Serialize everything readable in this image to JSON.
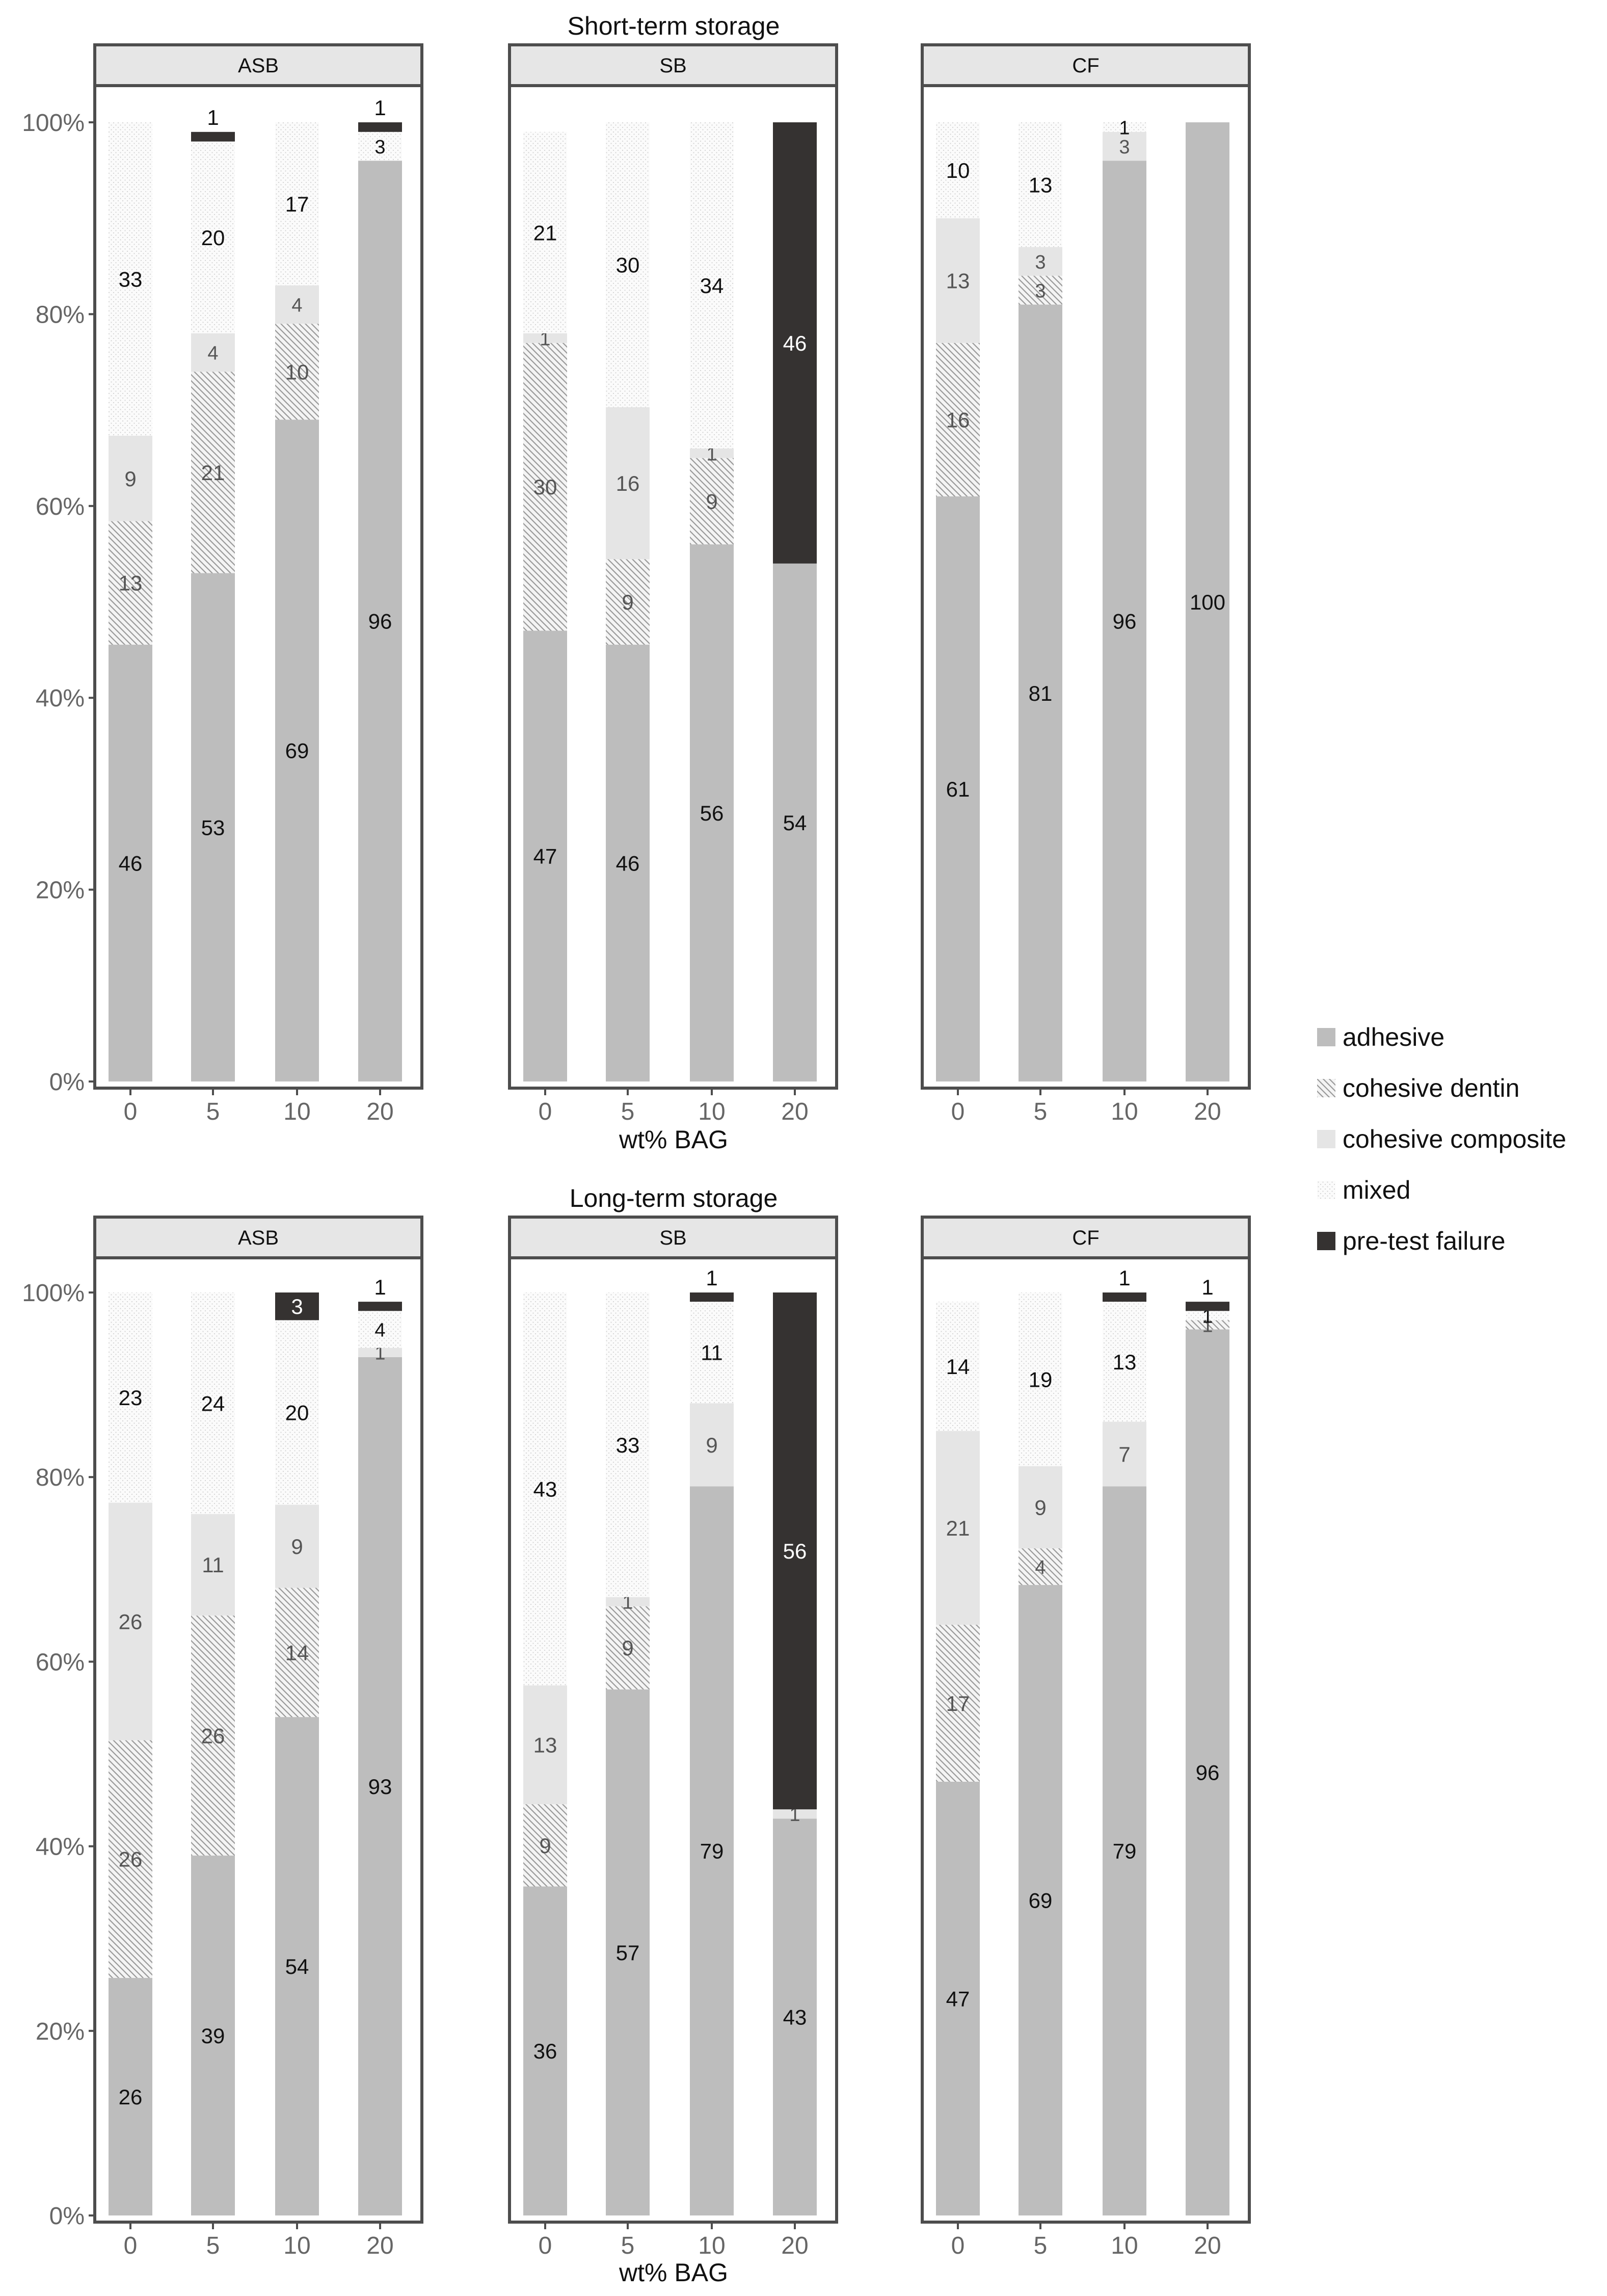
{
  "colors": {
    "adhesive": "#bdbdbd",
    "cohesive_dentin": "#f2f2f2",
    "cohesive_composite": "#e5e5e5",
    "mixed": "#fbfbfb",
    "pre_test_failure": "#353231",
    "strip_fill": "#e6e6e6",
    "frame": "#4d4d4d"
  },
  "legend": {
    "items": [
      {
        "label": "adhesive",
        "key": "adhesive"
      },
      {
        "label": "cohesive dentin",
        "key": "cohesive_dentin"
      },
      {
        "label": "cohesive composite",
        "key": "cohesive_composite"
      },
      {
        "label": "mixed",
        "key": "mixed"
      },
      {
        "label": "pre-test failure",
        "key": "pre_test_failure"
      }
    ]
  },
  "chart_data": [
    {
      "type": "bar",
      "stacked": true,
      "title": "Short-term storage",
      "xlabel": "wt% BAG",
      "ylabel": "",
      "ylim": [
        0,
        100
      ],
      "yticks": [
        "0%",
        "20%",
        "40%",
        "60%",
        "80%",
        "100%"
      ],
      "categories": [
        "0",
        "5",
        "10",
        "20"
      ],
      "stack_order": [
        "adhesive",
        "cohesive dentin",
        "cohesive composite",
        "mixed",
        "pre-test failure"
      ],
      "panels": [
        {
          "name": "ASB",
          "series": [
            {
              "name": "adhesive",
              "values": [
                46,
                53,
                69,
                96
              ]
            },
            {
              "name": "cohesive dentin",
              "values": [
                13,
                21,
                10,
                0
              ]
            },
            {
              "name": "cohesive composite",
              "values": [
                9,
                4,
                4,
                0
              ]
            },
            {
              "name": "mixed",
              "values": [
                33,
                20,
                17,
                3
              ]
            },
            {
              "name": "pre-test failure",
              "values": [
                0,
                1,
                0,
                1
              ]
            }
          ]
        },
        {
          "name": "SB",
          "series": [
            {
              "name": "adhesive",
              "values": [
                47,
                46,
                56,
                54
              ]
            },
            {
              "name": "cohesive dentin",
              "values": [
                30,
                9,
                9,
                0
              ]
            },
            {
              "name": "cohesive composite",
              "values": [
                1,
                16,
                1,
                0
              ]
            },
            {
              "name": "mixed",
              "values": [
                21,
                30,
                34,
                0
              ]
            },
            {
              "name": "pre-test failure",
              "values": [
                0,
                0,
                0,
                46
              ]
            }
          ]
        },
        {
          "name": "CF",
          "series": [
            {
              "name": "adhesive",
              "values": [
                61,
                81,
                96,
                100
              ]
            },
            {
              "name": "cohesive dentin",
              "values": [
                16,
                3,
                0,
                0
              ]
            },
            {
              "name": "cohesive composite",
              "values": [
                13,
                3,
                3,
                0
              ]
            },
            {
              "name": "mixed",
              "values": [
                10,
                13,
                1,
                0
              ]
            },
            {
              "name": "pre-test failure",
              "values": [
                0,
                0,
                0,
                0
              ]
            }
          ]
        }
      ]
    },
    {
      "type": "bar",
      "stacked": true,
      "title": "Long-term storage",
      "xlabel": "wt% BAG",
      "ylabel": "",
      "ylim": [
        0,
        100
      ],
      "yticks": [
        "0%",
        "20%",
        "40%",
        "60%",
        "80%",
        "100%"
      ],
      "categories": [
        "0",
        "5",
        "10",
        "20"
      ],
      "stack_order": [
        "adhesive",
        "cohesive dentin",
        "cohesive composite",
        "mixed",
        "pre-test failure"
      ],
      "panels": [
        {
          "name": "ASB",
          "series": [
            {
              "name": "adhesive",
              "values": [
                26,
                39,
                54,
                93
              ]
            },
            {
              "name": "cohesive dentin",
              "values": [
                26,
                26,
                14,
                0
              ]
            },
            {
              "name": "cohesive composite",
              "values": [
                26,
                11,
                9,
                1
              ]
            },
            {
              "name": "mixed",
              "values": [
                23,
                24,
                20,
                4
              ]
            },
            {
              "name": "pre-test failure",
              "values": [
                0,
                0,
                3,
                1
              ]
            }
          ]
        },
        {
          "name": "SB",
          "series": [
            {
              "name": "adhesive",
              "values": [
                36,
                57,
                79,
                43
              ]
            },
            {
              "name": "cohesive dentin",
              "values": [
                9,
                9,
                0,
                0
              ]
            },
            {
              "name": "cohesive composite",
              "values": [
                13,
                1,
                9,
                1
              ]
            },
            {
              "name": "mixed",
              "values": [
                43,
                33,
                11,
                0
              ]
            },
            {
              "name": "pre-test failure",
              "values": [
                0,
                0,
                1,
                56
              ]
            }
          ]
        },
        {
          "name": "CF",
          "series": [
            {
              "name": "adhesive",
              "values": [
                47,
                69,
                79,
                96
              ]
            },
            {
              "name": "cohesive dentin",
              "values": [
                17,
                4,
                0,
                1
              ]
            },
            {
              "name": "cohesive composite",
              "values": [
                21,
                9,
                7,
                0
              ]
            },
            {
              "name": "mixed",
              "values": [
                14,
                19,
                13,
                1
              ]
            },
            {
              "name": "pre-test failure",
              "values": [
                0,
                0,
                1,
                1
              ]
            }
          ]
        }
      ]
    }
  ]
}
